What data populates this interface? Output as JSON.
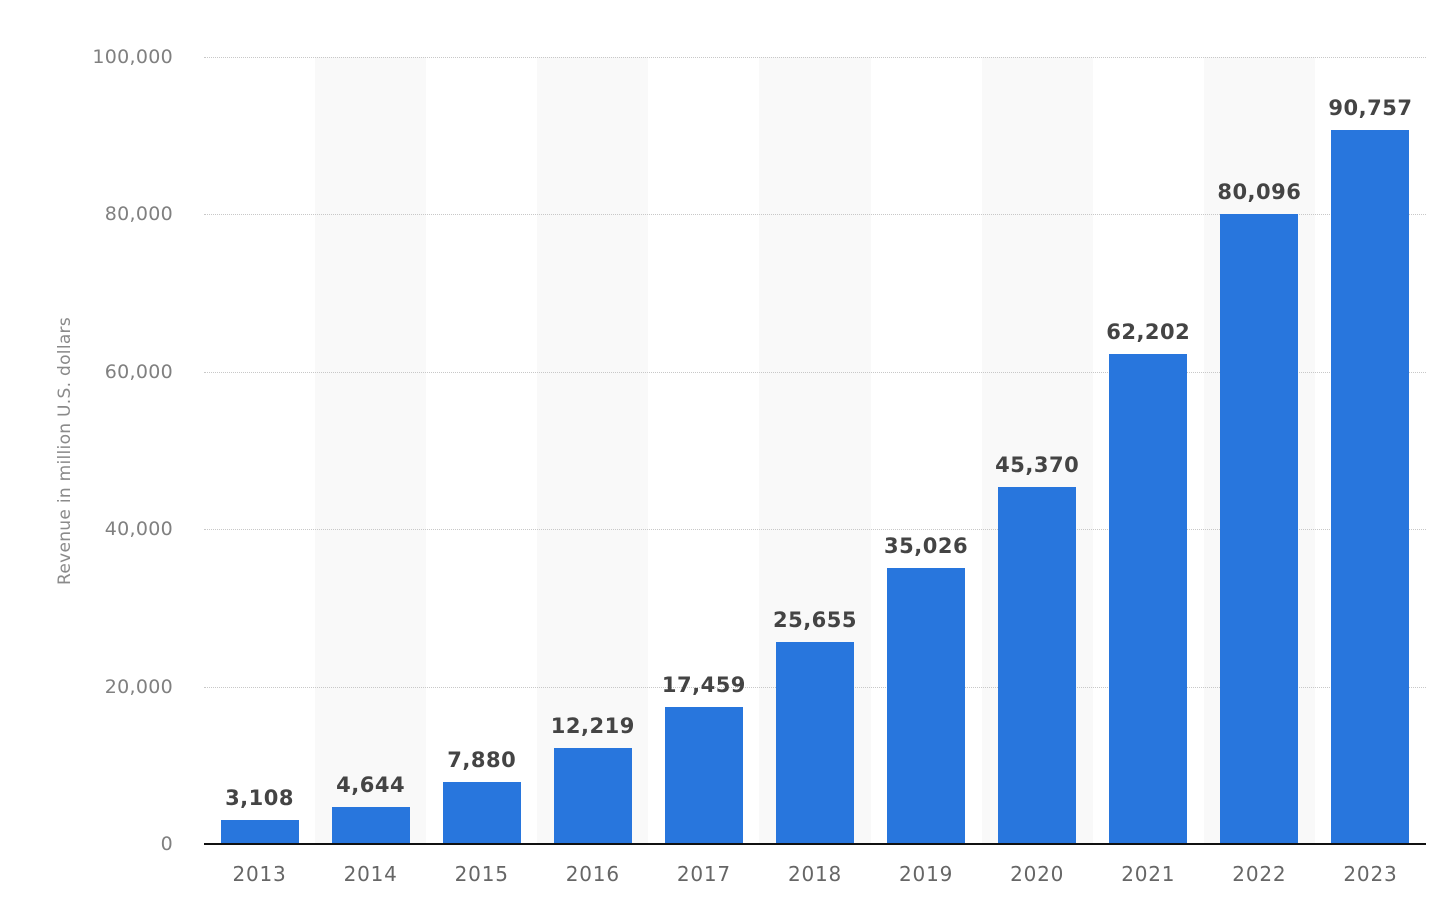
{
  "chart_data": {
    "type": "bar",
    "title": "",
    "xlabel": "",
    "ylabel": "Revenue in million U.S. dollars",
    "categories": [
      "2013",
      "2014",
      "2015",
      "2016",
      "2017",
      "2018",
      "2019",
      "2020",
      "2021",
      "2022",
      "2023"
    ],
    "values": [
      3108,
      4644,
      7880,
      12219,
      17459,
      25655,
      35026,
      45370,
      62202,
      80096,
      90757
    ],
    "value_labels": [
      "3,108",
      "4,644",
      "7,880",
      "12,219",
      "17,459",
      "25,655",
      "35,026",
      "45,370",
      "62,202",
      "80,096",
      "90,757"
    ],
    "ylim": [
      0,
      100000
    ],
    "yticks": [
      0,
      20000,
      40000,
      60000,
      80000,
      100000
    ],
    "ytick_labels": [
      "0",
      "20,000",
      "40,000",
      "60,000",
      "80,000",
      "100,000"
    ],
    "grid": true,
    "legend": null,
    "bar_color": "#2876dd",
    "band_color": "#f9f9f9"
  }
}
